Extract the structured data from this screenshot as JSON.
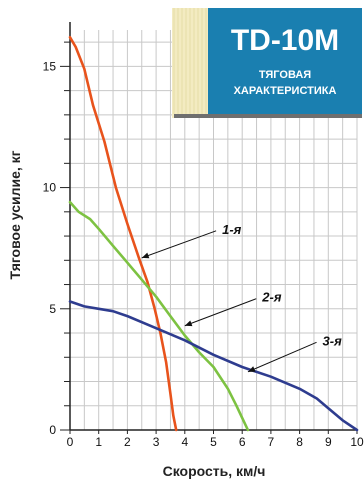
{
  "badge": {
    "title": "TD-10M",
    "subtitle_line1": "ТЯГОВАЯ",
    "subtitle_line2": "ХАРАКТЕРИСТИКА",
    "color": "#1a7fb0",
    "stripe_color": "#f3ebc1"
  },
  "chart_data": {
    "type": "line",
    "title": "TD-10M ТЯГОВАЯ ХАРАКТЕРИСТИКА",
    "xlabel": "Скорость, км/ч",
    "ylabel": "Тяговое усилие, кг",
    "xlim": [
      0,
      10
    ],
    "ylim": [
      0,
      16.5
    ],
    "x_ticks": [
      "0",
      "1",
      "2",
      "3",
      "4",
      "5",
      "6",
      "7",
      "8",
      "9",
      "10"
    ],
    "y_ticks": [
      {
        "value": 0,
        "label": "0"
      },
      {
        "value": 5,
        "label": "5"
      },
      {
        "value": 10,
        "label": "10"
      },
      {
        "value": 15,
        "label": "15"
      }
    ],
    "grid": true,
    "series": [
      {
        "name": "1-я",
        "color": "#e8531c",
        "x": [
          0.0,
          0.2,
          0.5,
          0.8,
          1.2,
          1.6,
          2.0,
          2.4,
          2.7,
          2.95,
          3.15,
          3.35,
          3.5,
          3.6,
          3.7
        ],
        "y": [
          16.2,
          15.8,
          14.9,
          13.4,
          11.9,
          10.0,
          8.5,
          7.1,
          6.1,
          5.0,
          4.0,
          2.8,
          1.5,
          0.6,
          0.0
        ]
      },
      {
        "name": "2-я",
        "color": "#7dc242",
        "x": [
          0.0,
          0.3,
          0.7,
          1.0,
          1.5,
          2.0,
          2.5,
          3.0,
          3.5,
          4.0,
          4.5,
          5.0,
          5.5,
          5.8,
          6.0,
          6.2
        ],
        "y": [
          9.4,
          9.0,
          8.7,
          8.3,
          7.6,
          6.9,
          6.2,
          5.5,
          4.7,
          3.9,
          3.2,
          2.6,
          1.7,
          1.0,
          0.5,
          0.0
        ]
      },
      {
        "name": "3-я",
        "color": "#2e3c8f",
        "x": [
          0.0,
          0.5,
          1.0,
          1.5,
          2.0,
          3.0,
          4.0,
          5.0,
          6.0,
          7.0,
          8.0,
          8.6,
          9.0,
          9.5,
          10.0
        ],
        "y": [
          5.3,
          5.1,
          5.0,
          4.9,
          4.7,
          4.2,
          3.7,
          3.1,
          2.6,
          2.2,
          1.7,
          1.3,
          0.9,
          0.4,
          0.0
        ]
      }
    ],
    "annotations": [
      {
        "text": "1-я",
        "series": "1-я",
        "point": [
          2.5,
          7.1
        ],
        "label_pos": [
          5.3,
          8.3
        ]
      },
      {
        "text": "2-я",
        "series": "2-я",
        "point": [
          4.0,
          4.3
        ],
        "label_pos": [
          6.7,
          5.5
        ]
      },
      {
        "text": "3-я",
        "series": "3-я",
        "point": [
          6.2,
          2.4
        ],
        "label_pos": [
          8.8,
          3.7
        ]
      }
    ]
  }
}
